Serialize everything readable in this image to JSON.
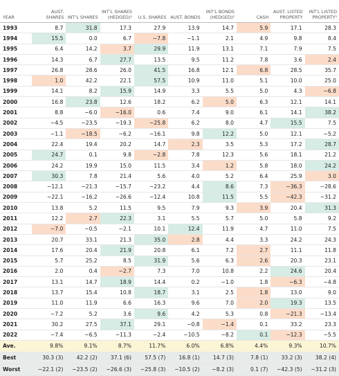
{
  "table": {
    "headers": [
      "YEAR",
      "AUST. SHARES",
      "INT’L SHARES",
      "INT’L SHARES (HEDGED)¹",
      "U.S. SHARES",
      "AUST. BONDS",
      "INT’L BONDS (HEDGED)²",
      "CASH",
      "AUST. LISTED PROPERTY",
      "INT’L LISTED PROPERTY³"
    ],
    "rows": [
      [
        "1993",
        "8.7",
        "31.8",
        "17.3",
        "27.9",
        "13.9",
        "14.7",
        "5.9",
        "17.1",
        "28.3"
      ],
      [
        "1994",
        "15.5",
        "0.0",
        "6.7",
        "−7.8",
        "−1.1",
        "2.1",
        "4.9",
        "9.8",
        "8.4"
      ],
      [
        "1995",
        "6.4",
        "14.2",
        "3.7",
        "29.9",
        "11.9",
        "13.1",
        "7.1",
        "7.9",
        "7.5"
      ],
      [
        "1996",
        "14.3",
        "6.7",
        "27.7",
        "13.5",
        "9.5",
        "11.2",
        "7.8",
        "3.6",
        "2.4"
      ],
      [
        "1997",
        "26.8",
        "28.6",
        "26.0",
        "41.5",
        "16.8",
        "12.1",
        "6.8",
        "28.5",
        "35.7"
      ],
      [
        "1998",
        "1.0",
        "42.2",
        "22.1",
        "57.5",
        "10.9",
        "11.0",
        "5.1",
        "10.0",
        "25.0"
      ],
      [
        "1999",
        "14.1",
        "8.2",
        "15.9",
        "14.9",
        "3.3",
        "5.5",
        "5.0",
        "4.3",
        "−6.8"
      ],
      [
        "2000",
        "16.8",
        "23.8",
        "12.6",
        "18.2",
        "6.2",
        "5.0",
        "6.3",
        "12.1",
        "14.1"
      ],
      [
        "2001",
        "8.8",
        "−6.0",
        "−16.0",
        "0.6",
        "7.4",
        "9.0",
        "6.1",
        "14.1",
        "38.2"
      ],
      [
        "2002",
        "−4.5",
        "−23.5",
        "−19.3",
        "−25.8",
        "6.2",
        "8.0",
        "4.7",
        "15.5",
        "7.5"
      ],
      [
        "2003",
        "−1.1",
        "−18.5",
        "−6.2",
        "−16.1",
        "9.8",
        "12.2",
        "5.0",
        "12.1",
        "−5.2"
      ],
      [
        "2004",
        "22.4",
        "19.4",
        "20.2",
        "14.7",
        "2.3",
        "3.5",
        "5.3",
        "17.2",
        "28.7"
      ],
      [
        "2005",
        "24.7",
        "0.1",
        "9.8",
        "−2.8",
        "7.8",
        "12.3",
        "5.6",
        "18.1",
        "21.2"
      ],
      [
        "2006",
        "24.2",
        "19.9",
        "15.0",
        "11.5",
        "3.4",
        "1.2",
        "5.8",
        "18.0",
        "24.2"
      ],
      [
        "2007",
        "30.3",
        "7.8",
        "21.4",
        "5.6",
        "4.0",
        "5.2",
        "6.4",
        "25.9",
        "3.0"
      ],
      [
        "2008",
        "−12.1",
        "−21.3",
        "−15.7",
        "−23.2",
        "4.4",
        "8.6",
        "7.3",
        "−36.3",
        "−28.6"
      ],
      [
        "2009",
        "−22.1",
        "−16.2",
        "−26.6",
        "−12.4",
        "10.8",
        "11.5",
        "5.5",
        "−42.3",
        "−31.2"
      ],
      [
        "2010",
        "13.8",
        "5.2",
        "11.5",
        "9.5",
        "7.9",
        "9.3",
        "3.9",
        "20.4",
        "31.3"
      ],
      [
        "2011",
        "12.2",
        "2.7",
        "22.3",
        "3.1",
        "5.5",
        "5.7",
        "5.0",
        "5.8",
        "9.2"
      ],
      [
        "2012",
        "−7.0",
        "−0.5",
        "−2.1",
        "10.1",
        "12.4",
        "11.9",
        "4.7",
        "11.0",
        "7.5"
      ],
      [
        "2013",
        "20.7",
        "33.1",
        "21.3",
        "35.0",
        "2.8",
        "4.4",
        "3.3",
        "24.2",
        "24.3"
      ],
      [
        "2014",
        "17.6",
        "20.4",
        "21.9",
        "20.8",
        "6.1",
        "7.2",
        "2.7",
        "11.1",
        "11.8"
      ],
      [
        "2015",
        "5.7",
        "25.2",
        "8.5",
        "31.9",
        "5.6",
        "6.3",
        "2.6",
        "20.3",
        "23.1"
      ],
      [
        "2016",
        "2.0",
        "0.4",
        "−2.7",
        "7.3",
        "7.0",
        "10.8",
        "2.2",
        "24.6",
        "20.4"
      ],
      [
        "2017",
        "13.1",
        "14.7",
        "18.9",
        "14.4",
        "0.2",
        "−1.0",
        "1.8",
        "−6.3",
        "−4.8"
      ],
      [
        "2018",
        "13.7",
        "15.4",
        "10.8",
        "18.7",
        "3.1",
        "2.5",
        "1.8",
        "13.0",
        "9.0"
      ],
      [
        "2019",
        "11.0",
        "11.9",
        "6.6",
        "16.3",
        "9.6",
        "7.0",
        "2.0",
        "19.3",
        "13.5"
      ],
      [
        "2020",
        "−7.2",
        "5.2",
        "3.6",
        "9.6",
        "4.2",
        "5.3",
        "0.8",
        "−21.3",
        "−13.4"
      ],
      [
        "2021",
        "30.2",
        "27.5",
        "37.1",
        "29.1",
        "−0.8",
        "−1.4",
        "0.1",
        "33.2",
        "23.3"
      ],
      [
        "2022",
        "−7.4",
        "−6.5",
        "−11.3",
        "−2.4",
        "−10.5",
        "−8.2",
        "0.1",
        "−12.3",
        "−5.5"
      ]
    ],
    "summary": [
      [
        "Ave.",
        "9.8%",
        "9.1%",
        "8.7%",
        "11.7%",
        "6.0%",
        "6.8%",
        "4.4%",
        "9.3%",
        "10.7%"
      ],
      [
        "Best",
        "30.3 (3)",
        "42.2 (2)",
        "37.1 (6)",
        "57.5 (7)",
        "16.8 (1)",
        "14.7 (3)",
        "7.8 (1)",
        "33.2 (3)",
        "38.2 (4)"
      ],
      [
        "Worst",
        "−22.1 (2)",
        "−23.5 (2)",
        "−26.6 (3)",
        "−25.8 (3)",
        "−10.5 (2)",
        "−8.2 (3)",
        "0.1 (7)",
        "−42.3 (5)",
        "−31.2 (3)"
      ]
    ]
  }
}
